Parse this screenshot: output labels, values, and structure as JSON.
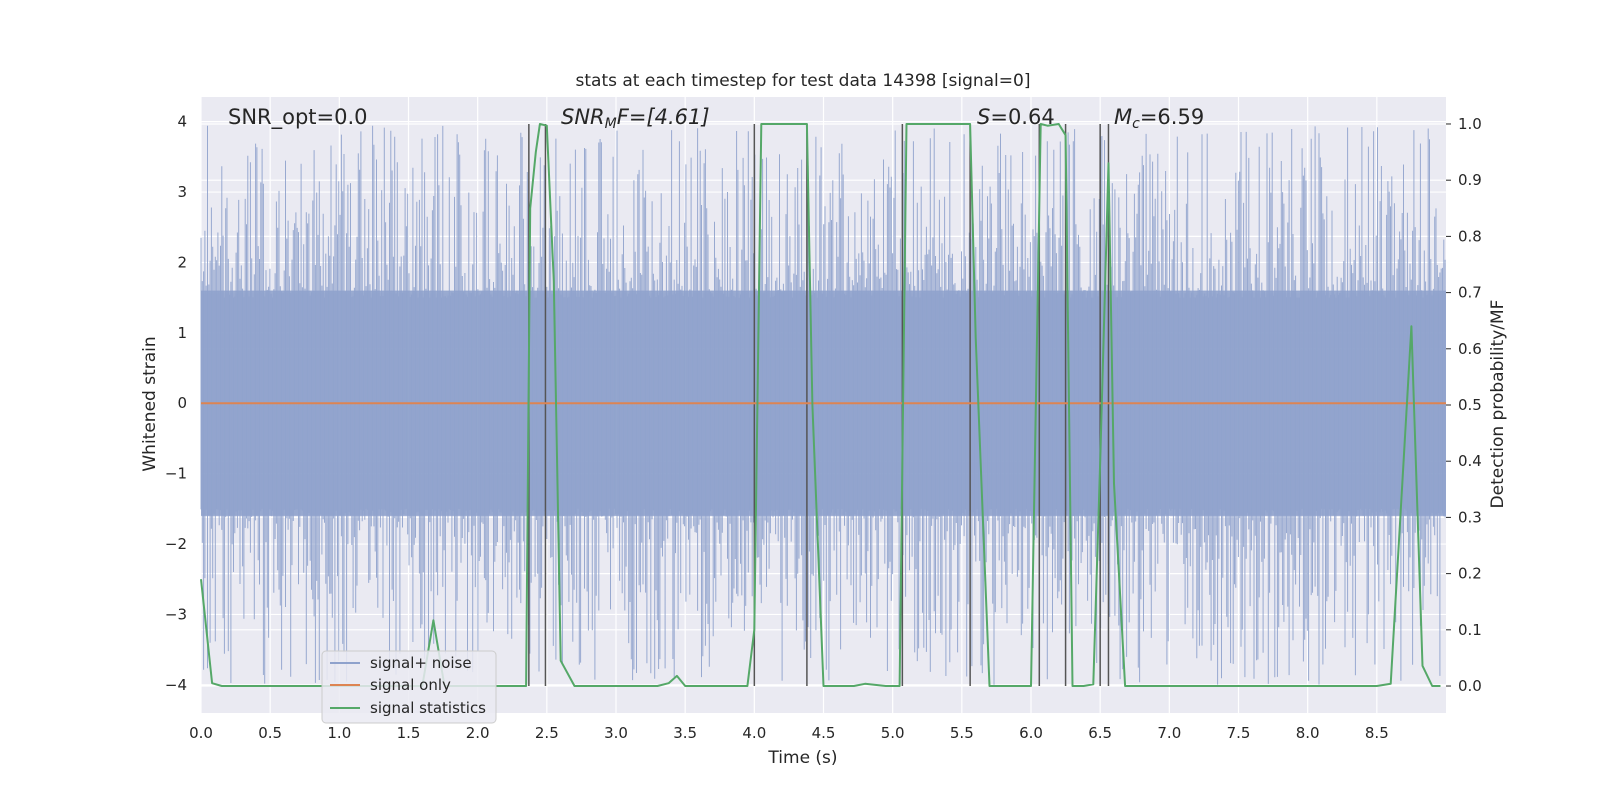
{
  "chart_data": {
    "type": "line",
    "title": "stats at each timestep for test data 14398 [signal=0]",
    "xlabel": "Time (s)",
    "ylabel": "Whitened strain",
    "ylabel_right": "Detection probability/MF",
    "xlim": [
      0,
      9.0
    ],
    "ylim": [
      -4.4,
      4.35
    ],
    "ylim_right": [
      -0.048,
      1.048
    ],
    "grid": true,
    "legend_position": "lower-left",
    "x_ticks": [
      "0.0",
      "0.5",
      "1.0",
      "1.5",
      "2.0",
      "2.5",
      "3.0",
      "3.5",
      "4.0",
      "4.5",
      "5.0",
      "5.5",
      "6.0",
      "6.5",
      "7.0",
      "7.5",
      "8.0",
      "8.5"
    ],
    "y_ticks": [
      "4",
      "3",
      "2",
      "1",
      "0",
      "−1",
      "−2",
      "−3",
      "−4"
    ],
    "y_ticks_right": [
      "1.0",
      "0.9",
      "0.8",
      "0.7",
      "0.6",
      "0.5",
      "0.4",
      "0.3",
      "0.2",
      "0.1",
      "0.0"
    ],
    "annotations": {
      "snr_opt": "SNR_opt=0.0",
      "snr_mf_main": "SNR",
      "snr_mf_sub": "M",
      "snr_mf_rest": "F=[4.61]",
      "s_main": "S",
      "s_rest": "=0.64",
      "mc_main": "M",
      "mc_sub": "c",
      "mc_rest": "=6.59"
    },
    "series": [
      {
        "name": "signal+ noise",
        "color": "#8fa2cc",
        "noise_envelope": [
          -1.6,
          1.6
        ],
        "peak_range": [
          -4.0,
          3.95
        ]
      },
      {
        "name": "signal only",
        "color": "#dd8452",
        "value": 0
      },
      {
        "name": "signal statistics",
        "color": "#55a868",
        "x": [
          0.0,
          0.08,
          0.15,
          0.5,
          1.0,
          1.5,
          1.6,
          1.68,
          1.76,
          1.85,
          2.0,
          2.35,
          2.38,
          2.42,
          2.45,
          2.5,
          2.55,
          2.6,
          2.7,
          3.0,
          3.3,
          3.38,
          3.44,
          3.5,
          3.7,
          3.95,
          4.0,
          4.05,
          4.1,
          4.38,
          4.42,
          4.5,
          4.6,
          4.72,
          4.8,
          4.95,
          5.0,
          5.05,
          5.1,
          5.56,
          5.6,
          5.7,
          5.8,
          6.0,
          6.07,
          6.12,
          6.2,
          6.25,
          6.3,
          6.38,
          6.45,
          6.5,
          6.56,
          6.6,
          6.68,
          6.8,
          7.0,
          8.0,
          8.5,
          8.6,
          8.75,
          8.83,
          8.9,
          8.96
        ],
        "values": [
          0.19,
          0.005,
          0.0,
          0.0,
          0.0,
          0.0,
          0.0,
          0.117,
          0.0,
          0.0,
          0.0,
          0.0,
          0.85,
          0.95,
          1.0,
          0.997,
          0.72,
          0.045,
          0.0,
          0.0,
          0.0,
          0.005,
          0.018,
          0.0,
          0.0,
          0.0,
          0.1,
          1.0,
          1.0,
          1.0,
          0.5,
          0.0,
          0.0,
          0.0,
          0.004,
          0.0,
          0.0,
          0.0,
          1.0,
          1.0,
          0.62,
          0.0,
          0.0,
          0.0,
          1.0,
          0.997,
          1.0,
          0.98,
          0.0,
          0.0,
          0.003,
          0.4,
          0.93,
          0.36,
          0.0,
          0.0,
          0.0,
          0.0,
          0.0,
          0.004,
          0.64,
          0.036,
          0.0,
          0.0
        ]
      }
    ],
    "vertical_lines": [
      2.37,
      2.49,
      4.0,
      4.38,
      5.07,
      5.56,
      6.06,
      6.25,
      6.5,
      6.56
    ]
  }
}
